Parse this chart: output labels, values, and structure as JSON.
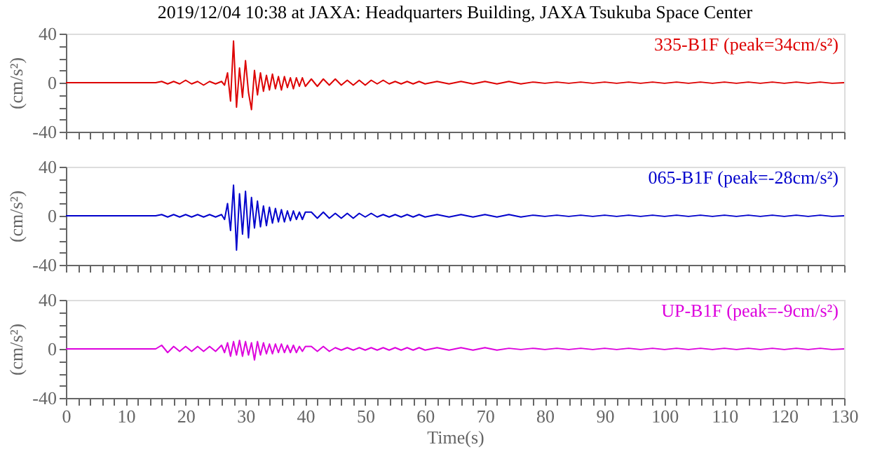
{
  "chart_data": [
    {
      "type": "line",
      "title": "2019/12/04 10:38 at JAXA: Headquarters Building, JAXA Tsukuba Space Center",
      "ylabel": "(cm/s²)",
      "tick_labels": "y",
      "grid": false,
      "marker": "none",
      "line_style": "solid",
      "xlim": [
        0,
        130
      ],
      "ylim": [
        -40,
        40
      ],
      "xticks": [
        0,
        {
          "value": 2,
          "label": null
        },
        {
          "value": 4,
          "label": null
        },
        {
          "value": 6,
          "label": null
        },
        {
          "value": 8,
          "label": null
        },
        10,
        {
          "value": 12,
          "label": null
        },
        {
          "value": 14,
          "label": null
        },
        {
          "value": 16,
          "label": null
        },
        {
          "value": 18,
          "label": null
        },
        20,
        {
          "value": 22,
          "label": null
        },
        {
          "value": 24,
          "label": null
        },
        {
          "value": 26,
          "label": null
        },
        {
          "value": 28,
          "label": null
        },
        30,
        {
          "value": 32,
          "label": null
        },
        {
          "value": 34,
          "label": null
        },
        {
          "value": 36,
          "label": null
        },
        {
          "value": 38,
          "label": null
        },
        40,
        {
          "value": 42,
          "label": null
        },
        {
          "value": 44,
          "label": null
        },
        {
          "value": 46,
          "label": null
        },
        {
          "value": 48,
          "label": null
        },
        50,
        {
          "value": 52,
          "label": null
        },
        {
          "value": 54,
          "label": null
        },
        {
          "value": 56,
          "label": null
        },
        {
          "value": 58,
          "label": null
        },
        60,
        {
          "value": 62,
          "label": null
        },
        {
          "value": 64,
          "label": null
        },
        {
          "value": 66,
          "label": null
        },
        {
          "value": 68,
          "label": null
        },
        70,
        {
          "value": 72,
          "label": null
        },
        {
          "value": 74,
          "label": null
        },
        {
          "value": 76,
          "label": null
        },
        {
          "value": 78,
          "label": null
        },
        80,
        {
          "value": 82,
          "label": null
        },
        {
          "value": 84,
          "label": null
        },
        {
          "value": 86,
          "label": null
        },
        {
          "value": 88,
          "label": null
        },
        90,
        {
          "value": 92,
          "label": null
        },
        {
          "value": 94,
          "label": null
        },
        {
          "value": 96,
          "label": null
        },
        {
          "value": 98,
          "label": null
        },
        100,
        {
          "value": 102,
          "label": null
        },
        {
          "value": 104,
          "label": null
        },
        {
          "value": 106,
          "label": null
        },
        {
          "value": 108,
          "label": null
        },
        110,
        {
          "value": 112,
          "label": null
        },
        {
          "value": 114,
          "label": null
        },
        {
          "value": 116,
          "label": null
        },
        {
          "value": 118,
          "label": null
        },
        120,
        {
          "value": 122,
          "label": null
        },
        {
          "value": 124,
          "label": null
        },
        {
          "value": 126,
          "label": null
        },
        {
          "value": 128,
          "label": null
        },
        130
      ],
      "yticks": [
        -40,
        {
          "value": -30,
          "label": null
        },
        {
          "value": -20,
          "label": null
        },
        {
          "value": -10,
          "label": null
        },
        0,
        {
          "value": 10,
          "label": null
        },
        {
          "value": 20,
          "label": null
        },
        {
          "value": 30,
          "label": null
        },
        40
      ],
      "x": [
        0,
        15,
        16,
        17,
        18,
        19,
        20,
        21,
        22,
        23,
        24,
        25,
        26,
        26.5,
        27,
        27.5,
        28,
        28.5,
        29,
        29.5,
        30,
        30.5,
        31,
        31.5,
        32,
        32.5,
        33,
        33.5,
        34,
        34.5,
        35,
        35.5,
        36,
        36.5,
        37,
        37.5,
        38,
        38.5,
        39,
        39.5,
        40,
        41,
        42,
        43,
        44,
        45,
        46,
        47,
        48,
        49,
        50,
        51,
        52,
        53,
        54,
        55,
        56,
        57,
        58,
        59,
        60,
        62,
        64,
        66,
        68,
        70,
        72,
        74,
        76,
        78,
        80,
        82,
        84,
        86,
        88,
        90,
        92,
        94,
        96,
        98,
        100,
        102,
        104,
        106,
        108,
        110,
        112,
        114,
        116,
        118,
        120,
        122,
        124,
        126,
        128,
        130
      ],
      "series": [
        {
          "name": "335-B1F (peak=34cm/s²)",
          "color": "#dd0000",
          "values": [
            0,
            0,
            1,
            -1,
            1,
            -1,
            2,
            -1,
            1,
            -2,
            1,
            -1,
            1,
            -2,
            8,
            -15,
            34,
            -20,
            12,
            -12,
            18,
            -8,
            -22,
            10,
            -10,
            8,
            -7,
            6,
            -6,
            7,
            -5,
            5,
            -6,
            5,
            -4,
            4,
            -5,
            4,
            -3,
            4,
            -3,
            3,
            -3,
            3,
            -2,
            3,
            -2,
            2,
            -2,
            2,
            -2,
            2,
            -1,
            2,
            -1,
            1,
            -1,
            1,
            -1,
            1,
            -1,
            1,
            -1,
            1,
            -1,
            1,
            -1,
            1,
            -1,
            0.5,
            -0.5,
            0.5,
            -0.5,
            0.5,
            -0.5,
            0.5,
            -0.5,
            0.5,
            -0.5,
            0.5,
            -0.5,
            0.5,
            -0.5,
            0.5,
            -0.5,
            0.5,
            -0.5,
            0.5,
            -0.5,
            0.5,
            -0.5,
            0.5,
            -0.5,
            0.5,
            -0.5,
            0
          ]
        }
      ]
    },
    {
      "type": "line",
      "ylabel": "(cm/s²)",
      "tick_labels": "y",
      "grid": false,
      "marker": "none",
      "line_style": "solid",
      "xlim": [
        0,
        130
      ],
      "ylim": [
        -40,
        40
      ],
      "xticks": [
        0,
        {
          "value": 2,
          "label": null
        },
        {
          "value": 4,
          "label": null
        },
        {
          "value": 6,
          "label": null
        },
        {
          "value": 8,
          "label": null
        },
        10,
        {
          "value": 12,
          "label": null
        },
        {
          "value": 14,
          "label": null
        },
        {
          "value": 16,
          "label": null
        },
        {
          "value": 18,
          "label": null
        },
        20,
        {
          "value": 22,
          "label": null
        },
        {
          "value": 24,
          "label": null
        },
        {
          "value": 26,
          "label": null
        },
        {
          "value": 28,
          "label": null
        },
        30,
        {
          "value": 32,
          "label": null
        },
        {
          "value": 34,
          "label": null
        },
        {
          "value": 36,
          "label": null
        },
        {
          "value": 38,
          "label": null
        },
        40,
        {
          "value": 42,
          "label": null
        },
        {
          "value": 44,
          "label": null
        },
        {
          "value": 46,
          "label": null
        },
        {
          "value": 48,
          "label": null
        },
        50,
        {
          "value": 52,
          "label": null
        },
        {
          "value": 54,
          "label": null
        },
        {
          "value": 56,
          "label": null
        },
        {
          "value": 58,
          "label": null
        },
        60,
        {
          "value": 62,
          "label": null
        },
        {
          "value": 64,
          "label": null
        },
        {
          "value": 66,
          "label": null
        },
        {
          "value": 68,
          "label": null
        },
        70,
        {
          "value": 72,
          "label": null
        },
        {
          "value": 74,
          "label": null
        },
        {
          "value": 76,
          "label": null
        },
        {
          "value": 78,
          "label": null
        },
        80,
        {
          "value": 82,
          "label": null
        },
        {
          "value": 84,
          "label": null
        },
        {
          "value": 86,
          "label": null
        },
        {
          "value": 88,
          "label": null
        },
        90,
        {
          "value": 92,
          "label": null
        },
        {
          "value": 94,
          "label": null
        },
        {
          "value": 96,
          "label": null
        },
        {
          "value": 98,
          "label": null
        },
        100,
        {
          "value": 102,
          "label": null
        },
        {
          "value": 104,
          "label": null
        },
        {
          "value": 106,
          "label": null
        },
        {
          "value": 108,
          "label": null
        },
        110,
        {
          "value": 112,
          "label": null
        },
        {
          "value": 114,
          "label": null
        },
        {
          "value": 116,
          "label": null
        },
        {
          "value": 118,
          "label": null
        },
        120,
        {
          "value": 122,
          "label": null
        },
        {
          "value": 124,
          "label": null
        },
        {
          "value": 126,
          "label": null
        },
        {
          "value": 128,
          "label": null
        },
        130
      ],
      "yticks": [
        -40,
        {
          "value": -30,
          "label": null
        },
        {
          "value": -20,
          "label": null
        },
        {
          "value": -10,
          "label": null
        },
        0,
        {
          "value": 10,
          "label": null
        },
        {
          "value": 20,
          "label": null
        },
        {
          "value": 30,
          "label": null
        },
        40
      ],
      "x": [
        0,
        15,
        16,
        17,
        18,
        19,
        20,
        21,
        22,
        23,
        24,
        25,
        26,
        26.5,
        27,
        27.5,
        28,
        28.5,
        29,
        29.5,
        30,
        30.5,
        31,
        31.5,
        32,
        32.5,
        33,
        33.5,
        34,
        34.5,
        35,
        35.5,
        36,
        36.5,
        37,
        37.5,
        38,
        38.5,
        39,
        39.5,
        40,
        41,
        42,
        43,
        44,
        45,
        46,
        47,
        48,
        49,
        50,
        51,
        52,
        53,
        54,
        55,
        56,
        57,
        58,
        59,
        60,
        62,
        64,
        66,
        68,
        70,
        72,
        74,
        76,
        78,
        80,
        82,
        84,
        86,
        88,
        90,
        92,
        94,
        96,
        98,
        100,
        102,
        104,
        106,
        108,
        110,
        112,
        114,
        116,
        118,
        120,
        122,
        124,
        126,
        128,
        130
      ],
      "series": [
        {
          "name": "065-B1F (peak=-28cm/s²)",
          "color": "#0000cc",
          "values": [
            0,
            0,
            1,
            -1,
            1,
            -1,
            1,
            -1,
            1,
            -1,
            1,
            -1,
            1,
            -3,
            10,
            -12,
            25,
            -28,
            18,
            -15,
            20,
            -18,
            15,
            -10,
            12,
            -9,
            8,
            -8,
            7,
            -6,
            6,
            -5,
            5,
            -5,
            4,
            -4,
            4,
            -3,
            3,
            -3,
            3,
            3,
            -2,
            3,
            -2,
            2,
            -2,
            2,
            -2,
            2,
            -1,
            2,
            -1,
            1,
            -1,
            1,
            -1,
            1,
            -1,
            1,
            -1,
            1,
            -1,
            1,
            -1,
            1,
            -1,
            1,
            -1,
            0.5,
            -0.5,
            0.5,
            -0.5,
            0.5,
            -0.5,
            0.5,
            -0.5,
            0.5,
            -0.5,
            0.5,
            -0.5,
            0.5,
            -0.5,
            0.5,
            -0.5,
            0.5,
            -0.5,
            0.5,
            -0.5,
            0.5,
            -0.5,
            0.5,
            -0.5,
            0.5,
            -0.5,
            0
          ]
        }
      ]
    },
    {
      "type": "line",
      "ylabel": "(cm/s²)",
      "xlabel": "Time(s)",
      "grid": false,
      "marker": "none",
      "line_style": "solid",
      "xlim": [
        0,
        130
      ],
      "ylim": [
        -40,
        40
      ],
      "xticks": [
        0,
        {
          "value": 2,
          "label": null
        },
        {
          "value": 4,
          "label": null
        },
        {
          "value": 6,
          "label": null
        },
        {
          "value": 8,
          "label": null
        },
        10,
        {
          "value": 12,
          "label": null
        },
        {
          "value": 14,
          "label": null
        },
        {
          "value": 16,
          "label": null
        },
        {
          "value": 18,
          "label": null
        },
        20,
        {
          "value": 22,
          "label": null
        },
        {
          "value": 24,
          "label": null
        },
        {
          "value": 26,
          "label": null
        },
        {
          "value": 28,
          "label": null
        },
        30,
        {
          "value": 32,
          "label": null
        },
        {
          "value": 34,
          "label": null
        },
        {
          "value": 36,
          "label": null
        },
        {
          "value": 38,
          "label": null
        },
        40,
        {
          "value": 42,
          "label": null
        },
        {
          "value": 44,
          "label": null
        },
        {
          "value": 46,
          "label": null
        },
        {
          "value": 48,
          "label": null
        },
        50,
        {
          "value": 52,
          "label": null
        },
        {
          "value": 54,
          "label": null
        },
        {
          "value": 56,
          "label": null
        },
        {
          "value": 58,
          "label": null
        },
        60,
        {
          "value": 62,
          "label": null
        },
        {
          "value": 64,
          "label": null
        },
        {
          "value": 66,
          "label": null
        },
        {
          "value": 68,
          "label": null
        },
        70,
        {
          "value": 72,
          "label": null
        },
        {
          "value": 74,
          "label": null
        },
        {
          "value": 76,
          "label": null
        },
        {
          "value": 78,
          "label": null
        },
        80,
        {
          "value": 82,
          "label": null
        },
        {
          "value": 84,
          "label": null
        },
        {
          "value": 86,
          "label": null
        },
        {
          "value": 88,
          "label": null
        },
        90,
        {
          "value": 92,
          "label": null
        },
        {
          "value": 94,
          "label": null
        },
        {
          "value": 96,
          "label": null
        },
        {
          "value": 98,
          "label": null
        },
        100,
        {
          "value": 102,
          "label": null
        },
        {
          "value": 104,
          "label": null
        },
        {
          "value": 106,
          "label": null
        },
        {
          "value": 108,
          "label": null
        },
        110,
        {
          "value": 112,
          "label": null
        },
        {
          "value": 114,
          "label": null
        },
        {
          "value": 116,
          "label": null
        },
        {
          "value": 118,
          "label": null
        },
        120,
        {
          "value": 122,
          "label": null
        },
        {
          "value": 124,
          "label": null
        },
        {
          "value": 126,
          "label": null
        },
        {
          "value": 128,
          "label": null
        },
        130
      ],
      "yticks": [
        -40,
        {
          "value": -30,
          "label": null
        },
        {
          "value": -20,
          "label": null
        },
        {
          "value": -10,
          "label": null
        },
        0,
        {
          "value": 10,
          "label": null
        },
        {
          "value": 20,
          "label": null
        },
        {
          "value": 30,
          "label": null
        },
        40
      ],
      "x": [
        0,
        15,
        16,
        17,
        18,
        19,
        20,
        21,
        22,
        23,
        24,
        25,
        26,
        26.5,
        27,
        27.5,
        28,
        28.5,
        29,
        29.5,
        30,
        30.5,
        31,
        31.5,
        32,
        32.5,
        33,
        33.5,
        34,
        34.5,
        35,
        35.5,
        36,
        36.5,
        37,
        37.5,
        38,
        38.5,
        39,
        39.5,
        40,
        41,
        42,
        43,
        44,
        45,
        46,
        47,
        48,
        49,
        50,
        51,
        52,
        53,
        54,
        55,
        56,
        57,
        58,
        59,
        60,
        62,
        64,
        66,
        68,
        70,
        72,
        74,
        76,
        78,
        80,
        82,
        84,
        86,
        88,
        90,
        92,
        94,
        96,
        98,
        100,
        102,
        104,
        106,
        108,
        110,
        112,
        114,
        116,
        118,
        120,
        122,
        124,
        126,
        128,
        130
      ],
      "series": [
        {
          "name": "UP-B1F (peak=-9cm/s²)",
          "color": "#dd00dd",
          "values": [
            0,
            0,
            3,
            -3,
            2,
            -2,
            2,
            -2,
            2,
            -2,
            2,
            -2,
            3,
            -3,
            5,
            -6,
            6,
            -5,
            7,
            -6,
            6,
            -5,
            5,
            -9,
            6,
            -5,
            5,
            -4,
            4,
            -4,
            4,
            -3,
            4,
            -3,
            3,
            -3,
            3,
            -3,
            2,
            -2,
            2,
            2,
            -2,
            2,
            -2,
            1,
            -1,
            1,
            -1,
            1,
            -1,
            1,
            -1,
            1,
            -1,
            1,
            -1,
            1,
            -1,
            1,
            -1,
            1,
            -1,
            1,
            -1,
            1,
            -1,
            0.5,
            -0.5,
            0.5,
            -0.5,
            0.5,
            -0.5,
            0.5,
            -0.5,
            0.5,
            -0.5,
            0.5,
            -0.5,
            0.5,
            -0.5,
            0.5,
            -0.5,
            0.5,
            -0.5,
            0.5,
            -0.5,
            0.5,
            -0.5,
            0.5,
            -0.5,
            0.5,
            -0.5,
            0.5,
            -0.5,
            0
          ]
        }
      ]
    }
  ]
}
